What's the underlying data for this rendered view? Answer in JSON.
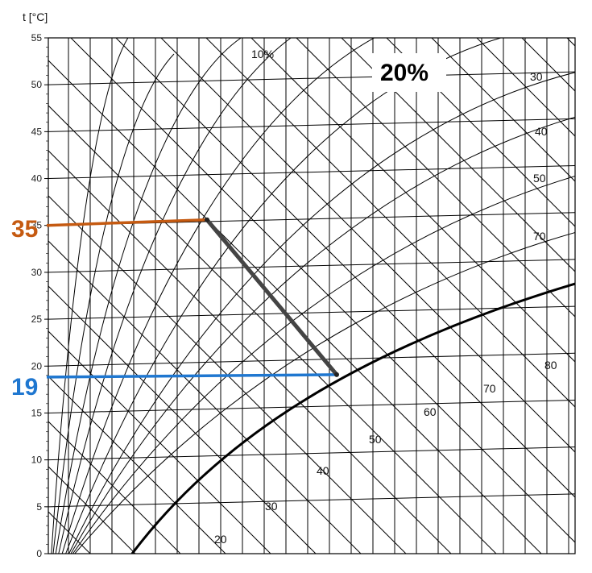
{
  "chart_data": {
    "type": "line",
    "ylabel": "t [°C]",
    "ylim": [
      0,
      55
    ],
    "y_ticks": [
      "0",
      "5",
      "10",
      "15",
      "20",
      "25",
      "30",
      "35",
      "40",
      "45",
      "50",
      "55"
    ],
    "grid": true,
    "series": [
      {
        "name": "process-path",
        "points": [
          [
            0,
            35
          ],
          [
            1,
            19
          ]
        ],
        "color": "#444444"
      },
      {
        "name": "inlet-temperature",
        "value": 35,
        "color": "#c55a11"
      },
      {
        "name": "outlet-temperature",
        "value": 19,
        "color": "#1f77d0"
      }
    ],
    "annotations": {
      "inlet_value": "35",
      "outlet_value": "19",
      "highlight_rh": "20%",
      "rh_10": "10%",
      "rh_20": "20",
      "rh_30_low": "30",
      "rh_40_low": "40",
      "rh_50_low": "50",
      "rh_60": "60",
      "rh_70_low": "70",
      "rh_80": "80",
      "rh_30_high": "30",
      "rh_40_high": "40",
      "rh_50_high": "50",
      "rh_70_high": "70"
    },
    "colors": {
      "inlet": "#c55a11",
      "outlet": "#1f77d0",
      "process": "#444444",
      "saturation": "#000000",
      "grid": "#000000"
    }
  }
}
